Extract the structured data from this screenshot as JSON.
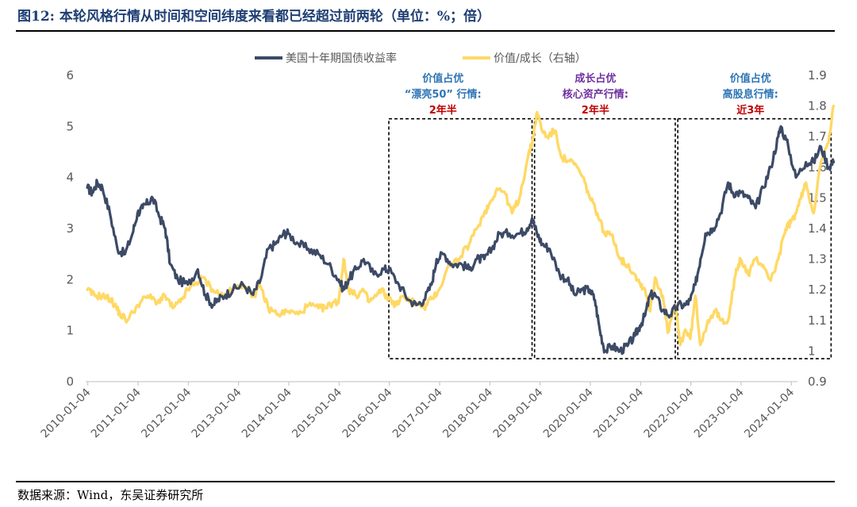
{
  "title": {
    "figure_no": "图12:",
    "text": "本轮风格行情从时间和空间纬度来看都已经超过前两轮（单位：%；倍）"
  },
  "source": "数据来源：Wind，东吴证券研究所",
  "colors": {
    "yield": "#3c4a66",
    "ratio": "#ffd966",
    "blue_note": "#2e75b6",
    "purple_note": "#7030a0",
    "red_note": "#c00000"
  },
  "chart_data": {
    "type": "line",
    "legend": [
      "美国十年期国债收益率",
      "价值/成长（右轴）"
    ],
    "left_axis": {
      "min": 0,
      "max": 6,
      "ticks": [
        "0",
        "1",
        "2",
        "3",
        "4",
        "5",
        "6"
      ]
    },
    "right_axis": {
      "min": 0.9,
      "max": 1.9,
      "ticks": [
        "0.9",
        "1",
        "1.1",
        "1.2",
        "1.3",
        "1.4",
        "1.5",
        "1.6",
        "1.7",
        "1.8",
        "1.9"
      ]
    },
    "x_ticks": [
      "2010-01-04",
      "2011-01-04",
      "2012-01-04",
      "2013-01-04",
      "2014-01-04",
      "2015-01-04",
      "2016-01-04",
      "2017-01-04",
      "2018-01-04",
      "2019-01-04",
      "2020-01-04",
      "2021-01-04",
      "2022-01-04",
      "2023-01-04",
      "2024-01-04"
    ],
    "x_range": [
      2010.0,
      2024.85
    ],
    "series": [
      {
        "name": "美国十年期国债收益率",
        "axis": "left",
        "x": [
          2010.0,
          2010.1,
          2010.2,
          2010.3,
          2010.45,
          2010.6,
          2010.75,
          2010.9,
          2011.0,
          2011.1,
          2011.2,
          2011.3,
          2011.45,
          2011.55,
          2011.65,
          2011.8,
          2012.0,
          2012.2,
          2012.35,
          2012.5,
          2012.6,
          2012.75,
          2012.9,
          2013.1,
          2013.3,
          2013.45,
          2013.6,
          2013.75,
          2013.9,
          2014.0,
          2014.2,
          2014.4,
          2014.6,
          2014.8,
          2015.0,
          2015.1,
          2015.2,
          2015.35,
          2015.5,
          2015.7,
          2015.9,
          2016.0,
          2016.2,
          2016.4,
          2016.55,
          2016.7,
          2016.85,
          2016.95,
          2017.1,
          2017.25,
          2017.45,
          2017.6,
          2017.75,
          2017.9,
          2018.05,
          2018.2,
          2018.4,
          2018.6,
          2018.75,
          2018.85,
          2018.95,
          2019.05,
          2019.2,
          2019.4,
          2019.55,
          2019.7,
          2019.85,
          2020.0,
          2020.1,
          2020.2,
          2020.3,
          2020.45,
          2020.6,
          2020.75,
          2020.9,
          2021.0,
          2021.1,
          2021.2,
          2021.3,
          2021.45,
          2021.6,
          2021.75,
          2021.9,
          2022.0,
          2022.1,
          2022.2,
          2022.3,
          2022.45,
          2022.6,
          2022.75,
          2022.85,
          2023.0,
          2023.15,
          2023.3,
          2023.45,
          2023.6,
          2023.75,
          2023.8,
          2023.95,
          2024.1,
          2024.3,
          2024.45,
          2024.6,
          2024.75,
          2024.85
        ],
        "values": [
          3.8,
          3.7,
          3.9,
          3.8,
          3.3,
          2.6,
          2.5,
          2.9,
          3.3,
          3.4,
          3.5,
          3.6,
          3.2,
          3.0,
          2.3,
          2.0,
          1.9,
          2.2,
          1.7,
          1.5,
          1.6,
          1.7,
          1.8,
          1.9,
          1.7,
          2.0,
          2.6,
          2.7,
          2.9,
          2.9,
          2.7,
          2.6,
          2.5,
          2.3,
          2.0,
          1.8,
          2.0,
          2.2,
          2.4,
          2.1,
          2.2,
          2.2,
          1.9,
          1.6,
          1.5,
          1.6,
          1.9,
          2.4,
          2.5,
          2.3,
          2.3,
          2.2,
          2.4,
          2.4,
          2.6,
          2.9,
          2.9,
          2.9,
          3.0,
          3.2,
          2.9,
          2.7,
          2.6,
          2.1,
          2.0,
          1.7,
          1.8,
          1.8,
          1.6,
          1.0,
          0.6,
          0.7,
          0.6,
          0.7,
          0.9,
          1.1,
          1.3,
          1.7,
          1.7,
          1.4,
          1.3,
          1.5,
          1.5,
          1.6,
          1.9,
          2.4,
          2.9,
          3.0,
          3.3,
          3.9,
          3.7,
          3.7,
          3.6,
          3.4,
          3.8,
          4.2,
          4.8,
          5.0,
          4.6,
          4.0,
          4.3,
          4.3,
          4.6,
          4.2,
          4.3
        ]
      },
      {
        "name": "价值/成长（右轴）",
        "axis": "right",
        "x": [
          2010.0,
          2010.15,
          2010.3,
          2010.45,
          2010.55,
          2010.65,
          2010.8,
          2011.0,
          2011.2,
          2011.4,
          2011.55,
          2011.7,
          2011.85,
          2012.0,
          2012.15,
          2012.3,
          2012.5,
          2012.7,
          2012.9,
          2013.1,
          2013.3,
          2013.45,
          2013.6,
          2013.8,
          2014.0,
          2014.2,
          2014.4,
          2014.6,
          2014.75,
          2014.9,
          2015.0,
          2015.1,
          2015.2,
          2015.35,
          2015.5,
          2015.6,
          2015.75,
          2015.85,
          2016.0,
          2016.15,
          2016.3,
          2016.5,
          2016.7,
          2016.85,
          2017.0,
          2017.2,
          2017.4,
          2017.6,
          2017.75,
          2017.9,
          2018.0,
          2018.15,
          2018.3,
          2018.45,
          2018.6,
          2018.75,
          2018.85,
          2018.95,
          2019.05,
          2019.15,
          2019.3,
          2019.45,
          2019.6,
          2019.75,
          2019.9,
          2020.0,
          2020.15,
          2020.3,
          2020.45,
          2020.6,
          2020.75,
          2020.9,
          2021.0,
          2021.1,
          2021.2,
          2021.3,
          2021.45,
          2021.55,
          2021.7,
          2021.8,
          2021.9,
          2022.0,
          2022.1,
          2022.2,
          2022.35,
          2022.5,
          2022.6,
          2022.75,
          2022.9,
          2023.0,
          2023.15,
          2023.3,
          2023.45,
          2023.6,
          2023.75,
          2023.9,
          2024.0,
          2024.1,
          2024.2,
          2024.3,
          2024.45,
          2024.6,
          2024.75,
          2024.85
        ],
        "values": [
          1.2,
          1.18,
          1.18,
          1.17,
          1.15,
          1.12,
          1.1,
          1.15,
          1.18,
          1.16,
          1.18,
          1.14,
          1.16,
          1.2,
          1.22,
          1.24,
          1.2,
          1.18,
          1.2,
          1.22,
          1.18,
          1.21,
          1.14,
          1.12,
          1.13,
          1.12,
          1.15,
          1.14,
          1.14,
          1.16,
          1.16,
          1.3,
          1.2,
          1.18,
          1.2,
          1.16,
          1.18,
          1.2,
          1.17,
          1.15,
          1.18,
          1.16,
          1.14,
          1.17,
          1.2,
          1.28,
          1.3,
          1.35,
          1.4,
          1.45,
          1.48,
          1.53,
          1.52,
          1.45,
          1.5,
          1.62,
          1.68,
          1.78,
          1.72,
          1.7,
          1.72,
          1.63,
          1.62,
          1.6,
          1.55,
          1.5,
          1.45,
          1.38,
          1.38,
          1.3,
          1.28,
          1.25,
          1.22,
          1.2,
          1.13,
          1.24,
          1.18,
          1.06,
          1.15,
          1.02,
          1.07,
          1.04,
          1.18,
          1.02,
          1.1,
          1.13,
          1.1,
          1.1,
          1.25,
          1.3,
          1.25,
          1.3,
          1.28,
          1.23,
          1.3,
          1.4,
          1.42,
          1.45,
          1.5,
          1.55,
          1.45,
          1.62,
          1.68,
          1.8
        ]
      }
    ],
    "annotations": [
      {
        "lines": [
          "价值占优",
          "“漂亮50” 行情:",
          "2年半"
        ],
        "colors": [
          "blue_note",
          "blue_note",
          "red_note"
        ],
        "box_x": [
          2016.0,
          2018.85
        ],
        "box_y": [
          0.45,
          5.15
        ]
      },
      {
        "lines": [
          "成长占优",
          "核心资产行情:",
          "2年半"
        ],
        "colors": [
          "purple_note",
          "purple_note",
          "red_note"
        ],
        "box_x": [
          2018.9,
          2021.7
        ],
        "box_y": [
          0.45,
          5.15
        ]
      },
      {
        "lines": [
          "价值占优",
          "高股息行情:",
          "近3年"
        ],
        "colors": [
          "blue_note",
          "blue_note",
          "red_note"
        ],
        "box_x": [
          2021.75,
          2024.8
        ],
        "box_y": [
          0.45,
          5.15
        ]
      }
    ]
  }
}
